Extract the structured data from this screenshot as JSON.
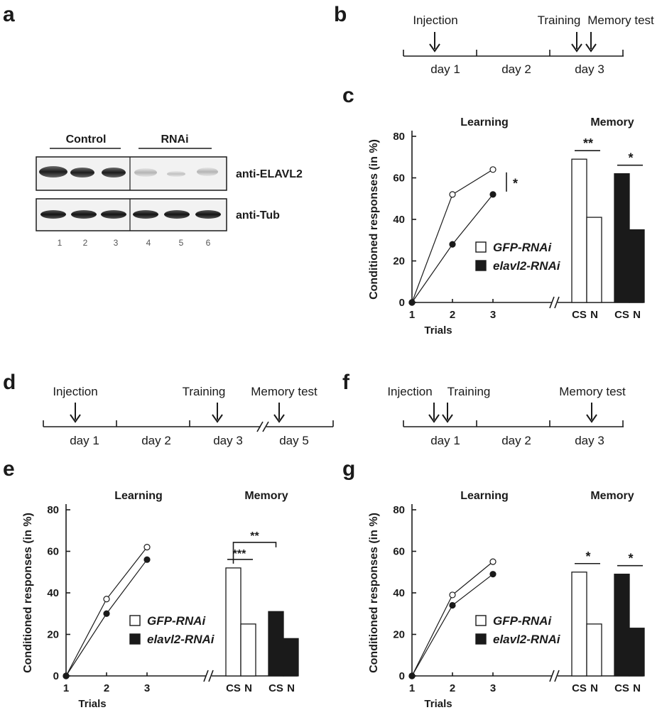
{
  "panels": {
    "a": {
      "letter": "a",
      "groups": [
        "Control",
        "RNAi"
      ],
      "blots": [
        "anti-ELAVL2",
        "anti-Tub"
      ],
      "lanes": [
        "1",
        "2",
        "3",
        "4",
        "5",
        "6"
      ]
    },
    "b": {
      "letter": "b",
      "days": [
        "day 1",
        "day 2",
        "day 3"
      ],
      "events": [
        "Injection",
        "Training",
        "Memory test"
      ]
    },
    "d": {
      "letter": "d",
      "days": [
        "day 1",
        "day 2",
        "day 3",
        "day 5"
      ],
      "events": [
        "Injection",
        "Training",
        "Memory test"
      ]
    },
    "f": {
      "letter": "f",
      "days": [
        "day 1",
        "day 2",
        "day 3"
      ],
      "events": [
        "Injection",
        "Training",
        "Memory test"
      ]
    }
  },
  "chart_data": [
    {
      "panel": "c",
      "type": "line",
      "section_titles": [
        "Learning",
        "Memory"
      ],
      "ylabel": "Conditioned responses (in %)",
      "xlabel": "Trials",
      "ylim": [
        0,
        80
      ],
      "yticks": [
        "0",
        "20",
        "40",
        "60",
        "80"
      ],
      "learning": {
        "x": [
          "1",
          "2",
          "3"
        ],
        "series": [
          {
            "name": "GFP-RNAi",
            "values": [
              0,
              52,
              64
            ]
          },
          {
            "name": "elavl2-RNAi",
            "values": [
              0,
              28,
              52
            ]
          }
        ],
        "sig": "*"
      },
      "memory": {
        "type": "bar",
        "categories": [
          "CS",
          "N",
          "CS",
          "N"
        ],
        "series": [
          {
            "name": "GFP-RNAi",
            "values": [
              69,
              41
            ]
          },
          {
            "name": "elavl2-RNAi",
            "values": [
              62,
              35
            ]
          }
        ],
        "sig": [
          "**",
          "*"
        ]
      },
      "legend": [
        "GFP-RNAi",
        "elavl2-RNAi"
      ],
      "colors": {
        "gfp": "#ffffff",
        "elavl2": "#1a1a1a"
      }
    },
    {
      "panel": "e",
      "type": "line",
      "section_titles": [
        "Learning",
        "Memory"
      ],
      "ylabel": "Conditioned responses (in %)",
      "xlabel": "Trials",
      "ylim": [
        0,
        80
      ],
      "yticks": [
        "0",
        "20",
        "40",
        "60",
        "80"
      ],
      "learning": {
        "x": [
          "1",
          "2",
          "3"
        ],
        "series": [
          {
            "name": "GFP-RNAi",
            "values": [
              0,
              37,
              62
            ]
          },
          {
            "name": "elavl2-RNAi",
            "values": [
              0,
              30,
              56
            ]
          }
        ],
        "sig": ""
      },
      "memory": {
        "type": "bar",
        "categories": [
          "CS",
          "N",
          "CS",
          "N"
        ],
        "series": [
          {
            "name": "GFP-RNAi",
            "values": [
              52,
              25
            ]
          },
          {
            "name": "elavl2-RNAi",
            "values": [
              31,
              18
            ]
          }
        ],
        "sig": [
          "***",
          "**"
        ]
      },
      "legend": [
        "GFP-RNAi",
        "elavl2-RNAi"
      ],
      "colors": {
        "gfp": "#ffffff",
        "elavl2": "#1a1a1a"
      }
    },
    {
      "panel": "g",
      "type": "line",
      "section_titles": [
        "Learning",
        "Memory"
      ],
      "ylabel": "Conditioned responses (in %)",
      "xlabel": "Trials",
      "ylim": [
        0,
        80
      ],
      "yticks": [
        "0",
        "20",
        "40",
        "60",
        "80"
      ],
      "learning": {
        "x": [
          "1",
          "2",
          "3"
        ],
        "series": [
          {
            "name": "GFP-RNAi",
            "values": [
              0,
              39,
              55
            ]
          },
          {
            "name": "elavl2-RNAi",
            "values": [
              0,
              34,
              49
            ]
          }
        ],
        "sig": ""
      },
      "memory": {
        "type": "bar",
        "categories": [
          "CS",
          "N",
          "CS",
          "N"
        ],
        "series": [
          {
            "name": "GFP-RNAi",
            "values": [
              50,
              25
            ]
          },
          {
            "name": "elavl2-RNAi",
            "values": [
              49,
              23
            ]
          }
        ],
        "sig": [
          "*",
          "*"
        ]
      },
      "legend": [
        "GFP-RNAi",
        "elavl2-RNAi"
      ],
      "colors": {
        "gfp": "#ffffff",
        "elavl2": "#1a1a1a"
      }
    }
  ],
  "chart_letters": [
    "c",
    "e",
    "g"
  ]
}
